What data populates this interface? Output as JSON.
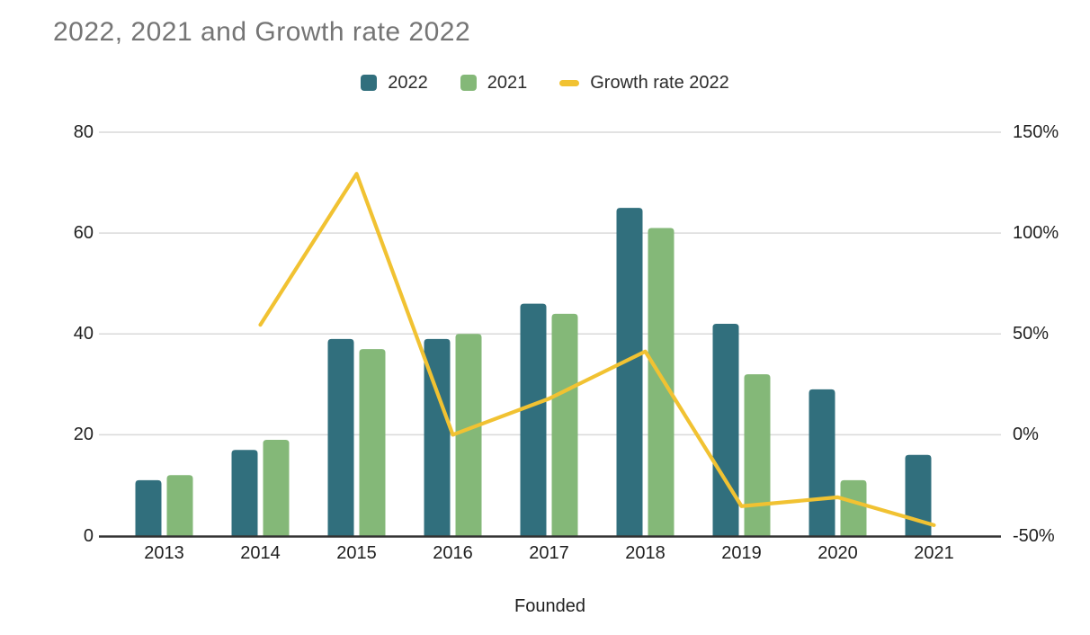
{
  "title": "2022, 2021 and Growth rate 2022",
  "legend": [
    {
      "label": "2022",
      "marker": "square",
      "color": "#316f7d"
    },
    {
      "label": "2021",
      "marker": "square",
      "color": "#84b878"
    },
    {
      "label": "Growth rate 2022",
      "marker": "line",
      "color": "#f1c232"
    }
  ],
  "chart_data": {
    "type": "combo-bar-line",
    "title": "2022, 2021 and Growth rate 2022",
    "categories": [
      "2013",
      "2014",
      "2015",
      "2016",
      "2017",
      "2018",
      "2019",
      "2020",
      "2021"
    ],
    "series": [
      {
        "name": "2022",
        "type": "bar",
        "axis": "left",
        "color": "#316f7d",
        "values": [
          11,
          17,
          39,
          39,
          46,
          65,
          42,
          29,
          16
        ]
      },
      {
        "name": "2021",
        "type": "bar",
        "axis": "left",
        "color": "#84b878",
        "values": [
          12,
          19,
          37,
          40,
          44,
          61,
          32,
          11,
          0
        ]
      },
      {
        "name": "Growth rate 2022",
        "type": "line",
        "axis": "right",
        "color": "#f1c232",
        "values": [
          null,
          54.5,
          129.4,
          0,
          17.9,
          41.3,
          -35.4,
          -31,
          -44.8
        ]
      }
    ],
    "left_axis": {
      "labels": [
        "80",
        "60",
        "40",
        "20",
        "0"
      ],
      "values": [
        80,
        60,
        40,
        20,
        0
      ],
      "range": [
        0,
        80
      ]
    },
    "right_axis": {
      "labels": [
        "150%",
        "100%",
        "50%",
        "0%",
        "-50%"
      ],
      "values": [
        150,
        100,
        50,
        0,
        -50
      ],
      "range": [
        -50,
        150
      ]
    },
    "xlabel": "Founded",
    "legend_position": "top",
    "grid": true
  },
  "colors": {
    "bar_2022": "#316f7d",
    "bar_2021": "#84b878",
    "growth_line": "#f1c232",
    "title_text": "#757575",
    "axis_text": "#1f1f1f",
    "gridline": "#d9d9d9",
    "axis_line": "#333333",
    "background": "#ffffff"
  }
}
